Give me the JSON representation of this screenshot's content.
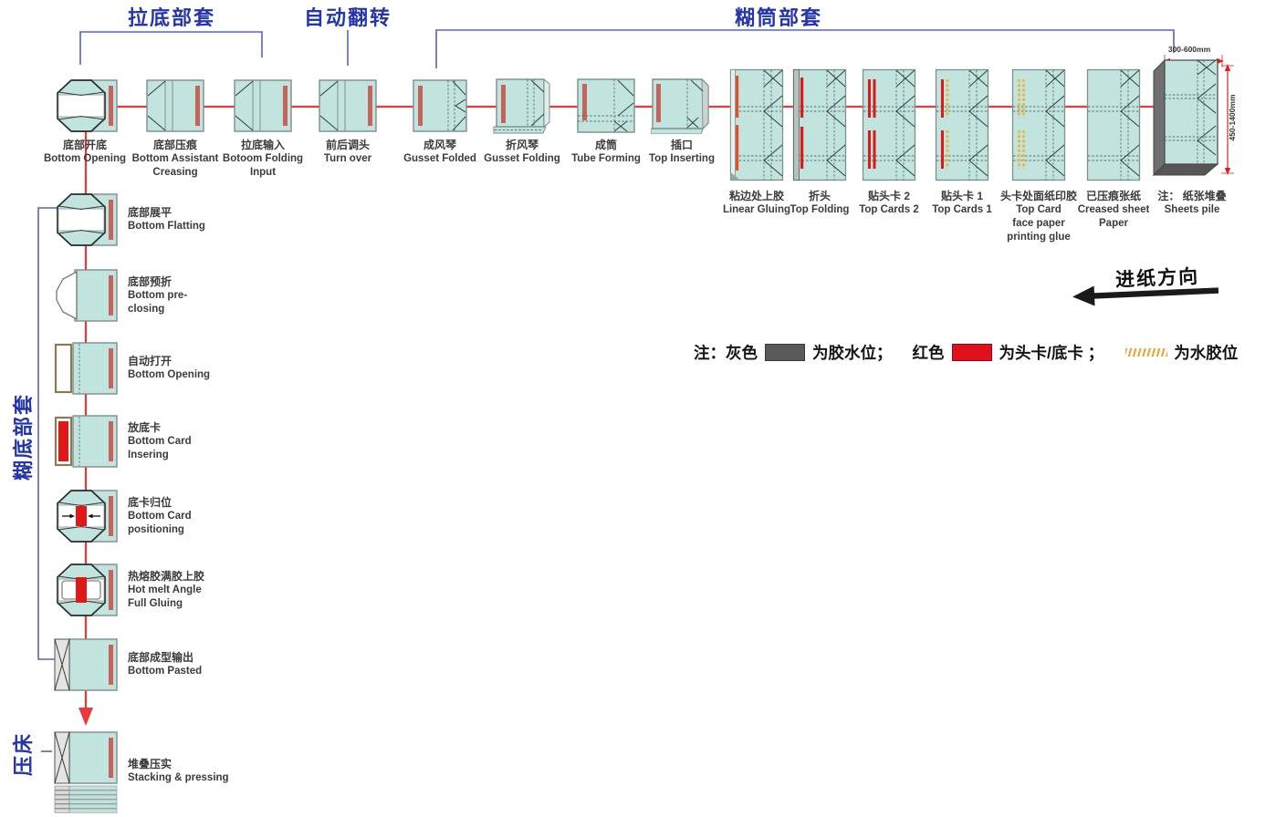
{
  "sections": {
    "pull_bottom_assembly": "拉底部套",
    "auto_turn": "自动翻转",
    "tube_gluing_assembly": "糊筒部套",
    "bottom_gluing_assembly": "糊底部套",
    "press": "压床"
  },
  "feed_direction_label": "进纸方向",
  "top_row": {
    "stations": [
      {
        "zh": "底部开底",
        "en": "Bottom Opening",
        "icon": "bag-open"
      },
      {
        "zh": "底部压痕",
        "en": "Bottom Assistant\nCreasing",
        "icon": "crease"
      },
      {
        "zh": "拉底输入",
        "en": "Botoom Folding\nInput",
        "icon": "crease"
      },
      {
        "zh": "前后调头",
        "en": "Turn over",
        "icon": "crease"
      },
      {
        "zh": "成风琴",
        "en": "Gusset Folded",
        "icon": "gusset"
      },
      {
        "zh": "折风琴",
        "en": "Gusset Folding",
        "icon": "gusset-fold"
      },
      {
        "zh": "成筒",
        "en": "Tube Forming",
        "icon": "tube"
      },
      {
        "zh": "插口",
        "en": "Top Inserting",
        "icon": "insert"
      },
      {
        "zh": "粘边处上胶",
        "en": "Linear Gluing",
        "icon": "tall-glue"
      },
      {
        "zh": "折头",
        "en": "Top Folding",
        "icon": "tall-fold"
      },
      {
        "zh": "贴头卡 2",
        "en": "Top Cards 2",
        "icon": "tall-cards2"
      },
      {
        "zh": "贴头卡 1",
        "en": "Top Cards 1",
        "icon": "tall-cards1"
      },
      {
        "zh": "头卡处面纸印胶",
        "en": "Top Card\nface paper\nprinting glue",
        "icon": "tall-print"
      },
      {
        "zh": "已压痕张纸",
        "en": "Creased sheet\nPaper",
        "icon": "tall-plain"
      },
      {
        "zh": "注： 纸张堆叠",
        "en": "Sheets pile",
        "icon": "pile3d"
      }
    ]
  },
  "left_column": {
    "stations": [
      {
        "zh": "底部展平",
        "en": "Bottom Flatting",
        "icon": "bag-open"
      },
      {
        "zh": "底部预折",
        "en": "Bottom pre-\nclosing",
        "icon": "preclose"
      },
      {
        "zh": "自动打开",
        "en": "Bottom Opening",
        "icon": "open-left"
      },
      {
        "zh": "放底卡",
        "en": "Bottom Card\nInsering",
        "icon": "card-insert"
      },
      {
        "zh": "底卡归位",
        "en": "Bottom Card\npositioning",
        "icon": "card-position"
      },
      {
        "zh": "热熔胶满胶上胶",
        "en": "Hot melt Angle\nFull Gluing",
        "icon": "hotmelt"
      },
      {
        "zh": "底部成型输出",
        "en": "Bottom Pasted",
        "icon": "pasted"
      },
      {
        "zh": "堆叠压实",
        "en": "Stacking & pressing",
        "icon": "stacked"
      }
    ]
  },
  "pile_dimensions": {
    "width_range": "300-600mm",
    "height_range": "450-1400mm"
  },
  "legend": {
    "note": "注：",
    "items": [
      {
        "label": "灰色",
        "swatch": "solid",
        "color": "#595959",
        "meaning": "为胶水位；"
      },
      {
        "label": "红色",
        "swatch": "solid",
        "color": "#e0111c",
        "meaning": "为头卡/底卡 ；"
      },
      {
        "label": "",
        "swatch": "hatch",
        "color": "#f0a028",
        "meaning": "为水胶位"
      }
    ]
  },
  "colors": {
    "box_fill_teal": "#c2e4de",
    "box_stroke": "#7e8f8d",
    "bar_muted_red": "#c4645c",
    "card_red": "#e01818",
    "glue_orange_red": "#e0502e",
    "water_glue_yellow": "#e8b84b",
    "flow_line_red": "#e8393b",
    "section_blue": "#2535ac",
    "bracket_blue": "#5a62c0",
    "feed_arrow_black": "#1a1a1a",
    "dimension_red": "#e02020"
  }
}
